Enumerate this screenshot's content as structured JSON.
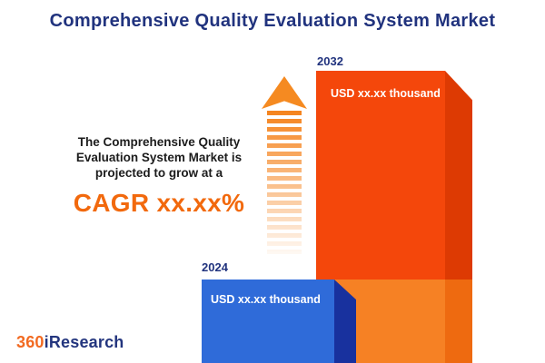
{
  "title": "Comprehensive Quality Evaluation System Market",
  "annotation": {
    "lines": [
      "The Comprehensive Quality",
      "Evaluation System Market is",
      "projected to grow at a"
    ],
    "cagr": "CAGR xx.xx%"
  },
  "chart_data": {
    "type": "bar",
    "categories": [
      "2024",
      "2032"
    ],
    "values": [
      null,
      null
    ],
    "value_labels": [
      "USD xx.xx thousand",
      "USD xx.xx thousand"
    ],
    "relative_heights": [
      0.29,
      1.0
    ],
    "title": "Comprehensive Quality Evaluation System Market",
    "xlabel": "",
    "ylabel": "",
    "legend": "none",
    "series_colors": [
      "#2f6bd9",
      "#f4470b"
    ]
  },
  "logo": {
    "part1": "360",
    "part2": "iResearch"
  },
  "colors": {
    "title_navy": "#21337e",
    "cagr_orange": "#f2690d",
    "bar_2024_front": "#2f6bd9",
    "bar_2024_side": "#18319e",
    "bar_2032_front": "#f4470b",
    "bar_2032_side": "#dd3a03",
    "bar_2032_base_front": "#f68124",
    "bar_2032_base_side": "#ee6a10",
    "arrow_orange": "#f5831d"
  }
}
